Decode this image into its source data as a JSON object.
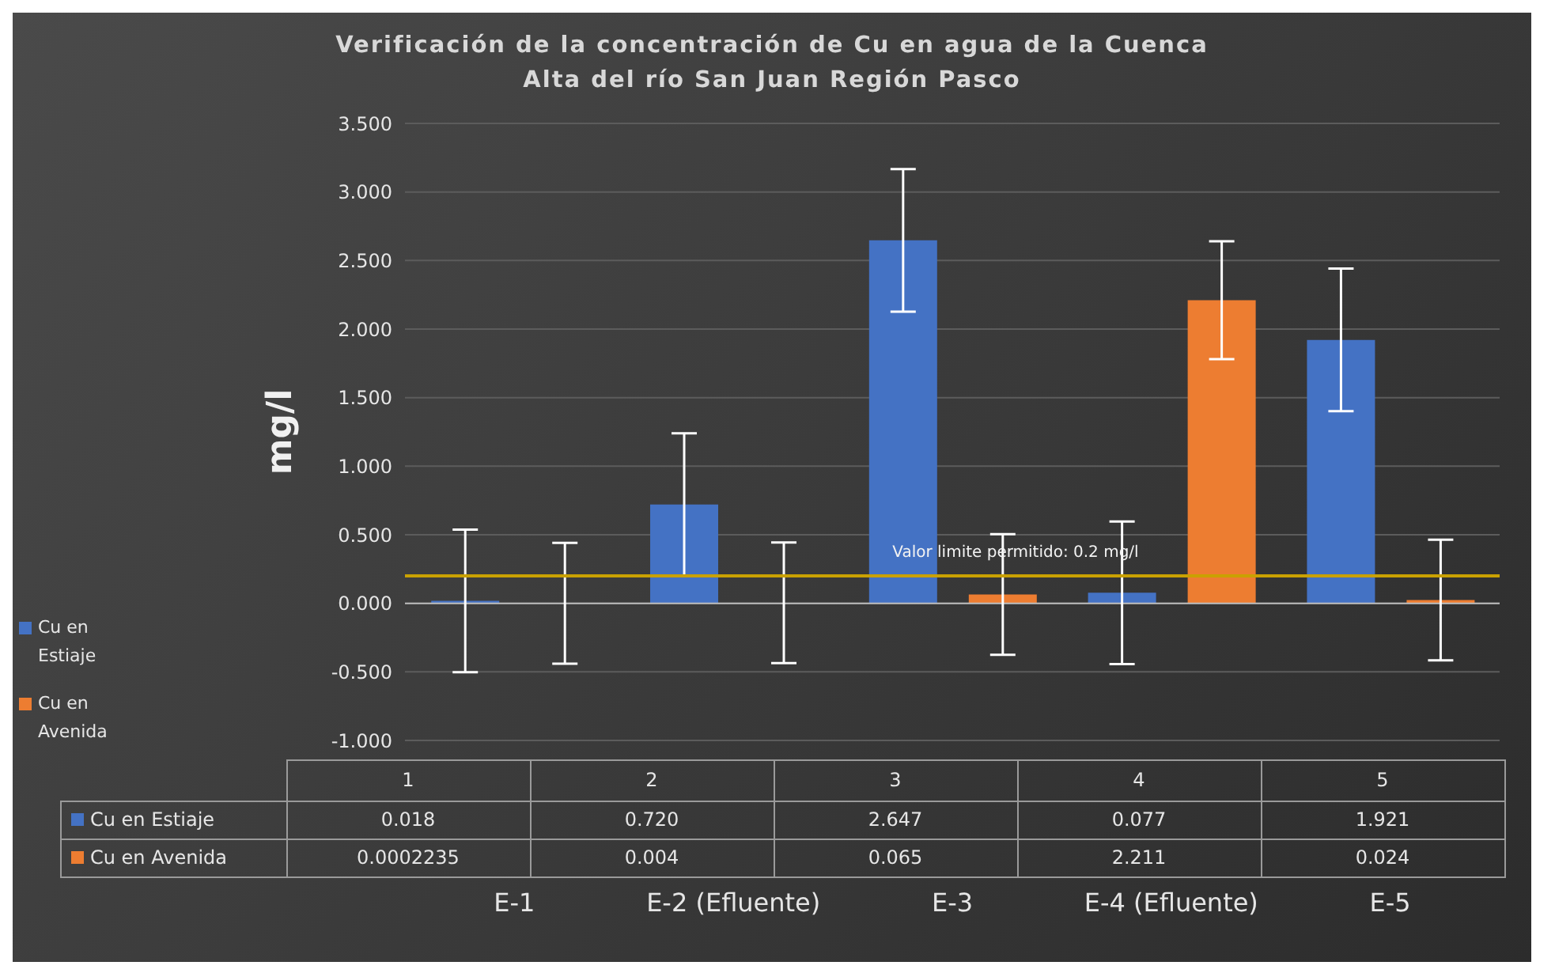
{
  "chart_data": {
    "type": "bar",
    "title": "Verificación de la concentración de Cu en agua de la Cuenca Alta del río San Juan Región Pasco",
    "ylabel": "mg/l",
    "categories": [
      "E-1",
      "E-2 (Efluente)",
      "E-3",
      "E-4 (Efluente)",
      "E-5"
    ],
    "series": [
      {
        "name": "Cu  en Estiaje",
        "color": "#4472c4",
        "values": [
          0.018,
          0.72,
          2.647,
          0.077,
          1.921
        ],
        "errors": [
          0.52,
          0.52,
          0.52,
          0.52,
          0.52
        ],
        "value_labels": [
          "0.018",
          "0.720",
          "2.647",
          "0.077",
          "1.921"
        ]
      },
      {
        "name": "Cu en Avenida",
        "color": "#ed7d31",
        "values": [
          0.0002235,
          0.004,
          0.065,
          2.211,
          0.024
        ],
        "errors": [
          0.44,
          0.44,
          0.44,
          0.43,
          0.44
        ],
        "value_labels": [
          "0.0002235",
          "0.004",
          "0.065",
          "2.211",
          "0.024"
        ]
      }
    ],
    "ylim": [
      -1,
      3.5
    ],
    "yticks": [
      {
        "value": -1,
        "label": "-1.000"
      },
      {
        "value": -0.5,
        "label": "-0.500"
      },
      {
        "value": 0,
        "label": "0.000"
      },
      {
        "value": 0.5,
        "label": "0.500"
      },
      {
        "value": 1,
        "label": "1.000"
      },
      {
        "value": 1.5,
        "label": "1.500"
      },
      {
        "value": 2,
        "label": "2.000"
      },
      {
        "value": 2.5,
        "label": "2.500"
      },
      {
        "value": 3,
        "label": "3.000"
      },
      {
        "value": 3.5,
        "label": "3.500"
      }
    ],
    "grid": "y",
    "legend": "left",
    "ref_lines": [
      {
        "axis": "y",
        "value": 0.2,
        "label": "Valor limite permitido: 0.2 mg/l",
        "color": "#c9a100"
      }
    ],
    "annotations": [
      "1",
      "2",
      "3",
      "4",
      "5"
    ]
  }
}
